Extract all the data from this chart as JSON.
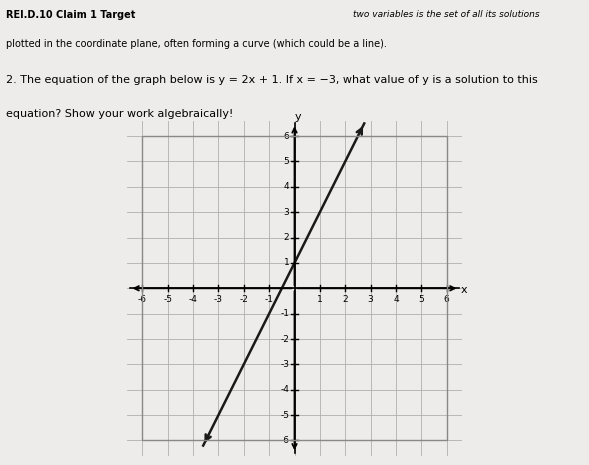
{
  "title_bold": "REI.D.10 Claim 1 Target",
  "text_top_right": "two variables is the set of all its solutions",
  "text_line2": "plotted in the coordinate plane, often forming a curve (which could be a line).",
  "question_line1": "2. The equation of the graph below is y = 2x + 1. If x = −3, what value of y is a solution to this",
  "question_line2": "equation? Show your work algebraically!",
  "slope": 2,
  "intercept": 1,
  "x_min": -6,
  "x_max": 6,
  "y_min": -6,
  "y_max": 6,
  "line_x_start": -3.6,
  "line_x_end": 2.75,
  "grid_color": "#b0b0b0",
  "axis_color": "#000000",
  "line_color": "#1a1a1a",
  "background_color": "#edecea",
  "graph_bg": "#dcdcdc",
  "border_color": "#888888",
  "figsize": [
    5.89,
    4.65
  ],
  "dpi": 100
}
